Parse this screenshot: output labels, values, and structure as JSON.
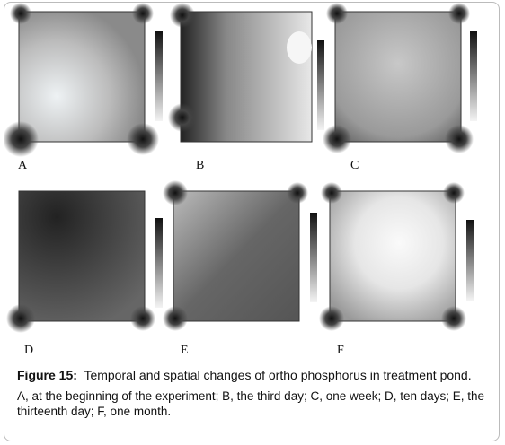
{
  "panels": [
    {
      "label": "A"
    },
    {
      "label": "B"
    },
    {
      "label": "C"
    },
    {
      "label": "D"
    },
    {
      "label": "E"
    },
    {
      "label": "F"
    }
  ],
  "caption": {
    "title": "Figure 15:",
    "text": "Temporal and spatial changes of ortho phosphorus in treatment pond.",
    "description": "A, at the beginning of the experiment; B, the third day; C, one week; D, ten days; E, the thirteenth day; F, one month."
  }
}
